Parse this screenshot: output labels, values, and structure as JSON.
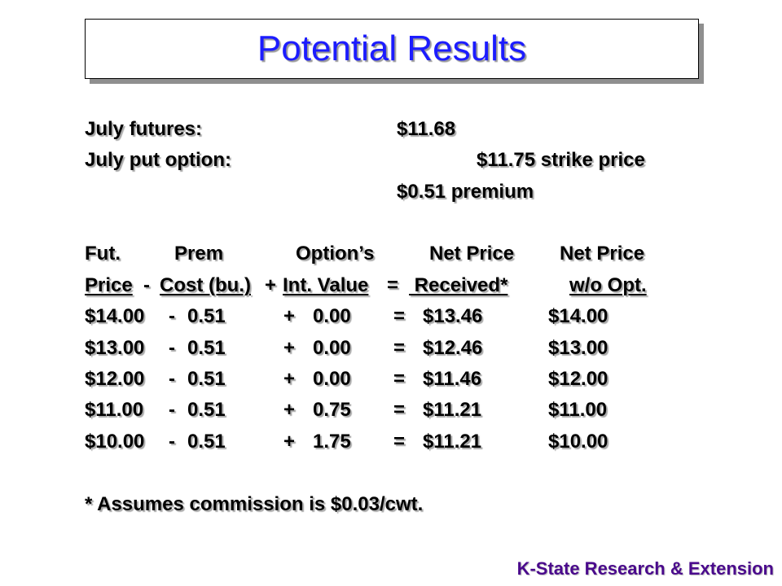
{
  "title": "Potential Results",
  "info": {
    "futures_label": "July futures:",
    "futures_value": "$11.68",
    "put_label": "July put option:",
    "put_strike": "$11.75 strike price",
    "put_premium": "$0.51 premium"
  },
  "table": {
    "header1": {
      "c1": "Fut.",
      "c2": "Prem",
      "c3": "Option’s",
      "c4": "Net Price",
      "c5": "Net Price"
    },
    "header2": {
      "c1": "Price",
      "op1": "-",
      "c2": "Cost (bu.)",
      "op2": "+",
      "c3": "Int. Value",
      "op3": "=",
      "c4": " Received*",
      "c5": "w/o Opt."
    },
    "rows": [
      {
        "price": "$14.00",
        "minus": "-",
        "prem": "0.51",
        "plus": "+",
        "intval": "0.00",
        "eq": "=",
        "net": "$13.46",
        "wo": "$14.00"
      },
      {
        "price": "$13.00",
        "minus": "-",
        "prem": "0.51",
        "plus": "+",
        "intval": "0.00",
        "eq": "=",
        "net": "$12.46",
        "wo": "$13.00"
      },
      {
        "price": "$12.00",
        "minus": "-",
        "prem": "0.51",
        "plus": "+",
        "intval": "0.00",
        "eq": "=",
        "net": "$11.46",
        "wo": "$12.00"
      },
      {
        "price": "$11.00",
        "minus": "-",
        "prem": "0.51",
        "plus": "+",
        "intval": "0.75",
        "eq": "=",
        "net": "$11.21",
        "wo": "$11.00"
      },
      {
        "price": "$10.00",
        "minus": "-",
        "prem": "0.51",
        "plus": "+",
        "intval": "1.75",
        "eq": "=",
        "net": "$11.21",
        "wo": "$10.00"
      }
    ]
  },
  "note": "* Assumes commission is $0.03/cwt.",
  "footer": "K-State Research & Extension"
}
